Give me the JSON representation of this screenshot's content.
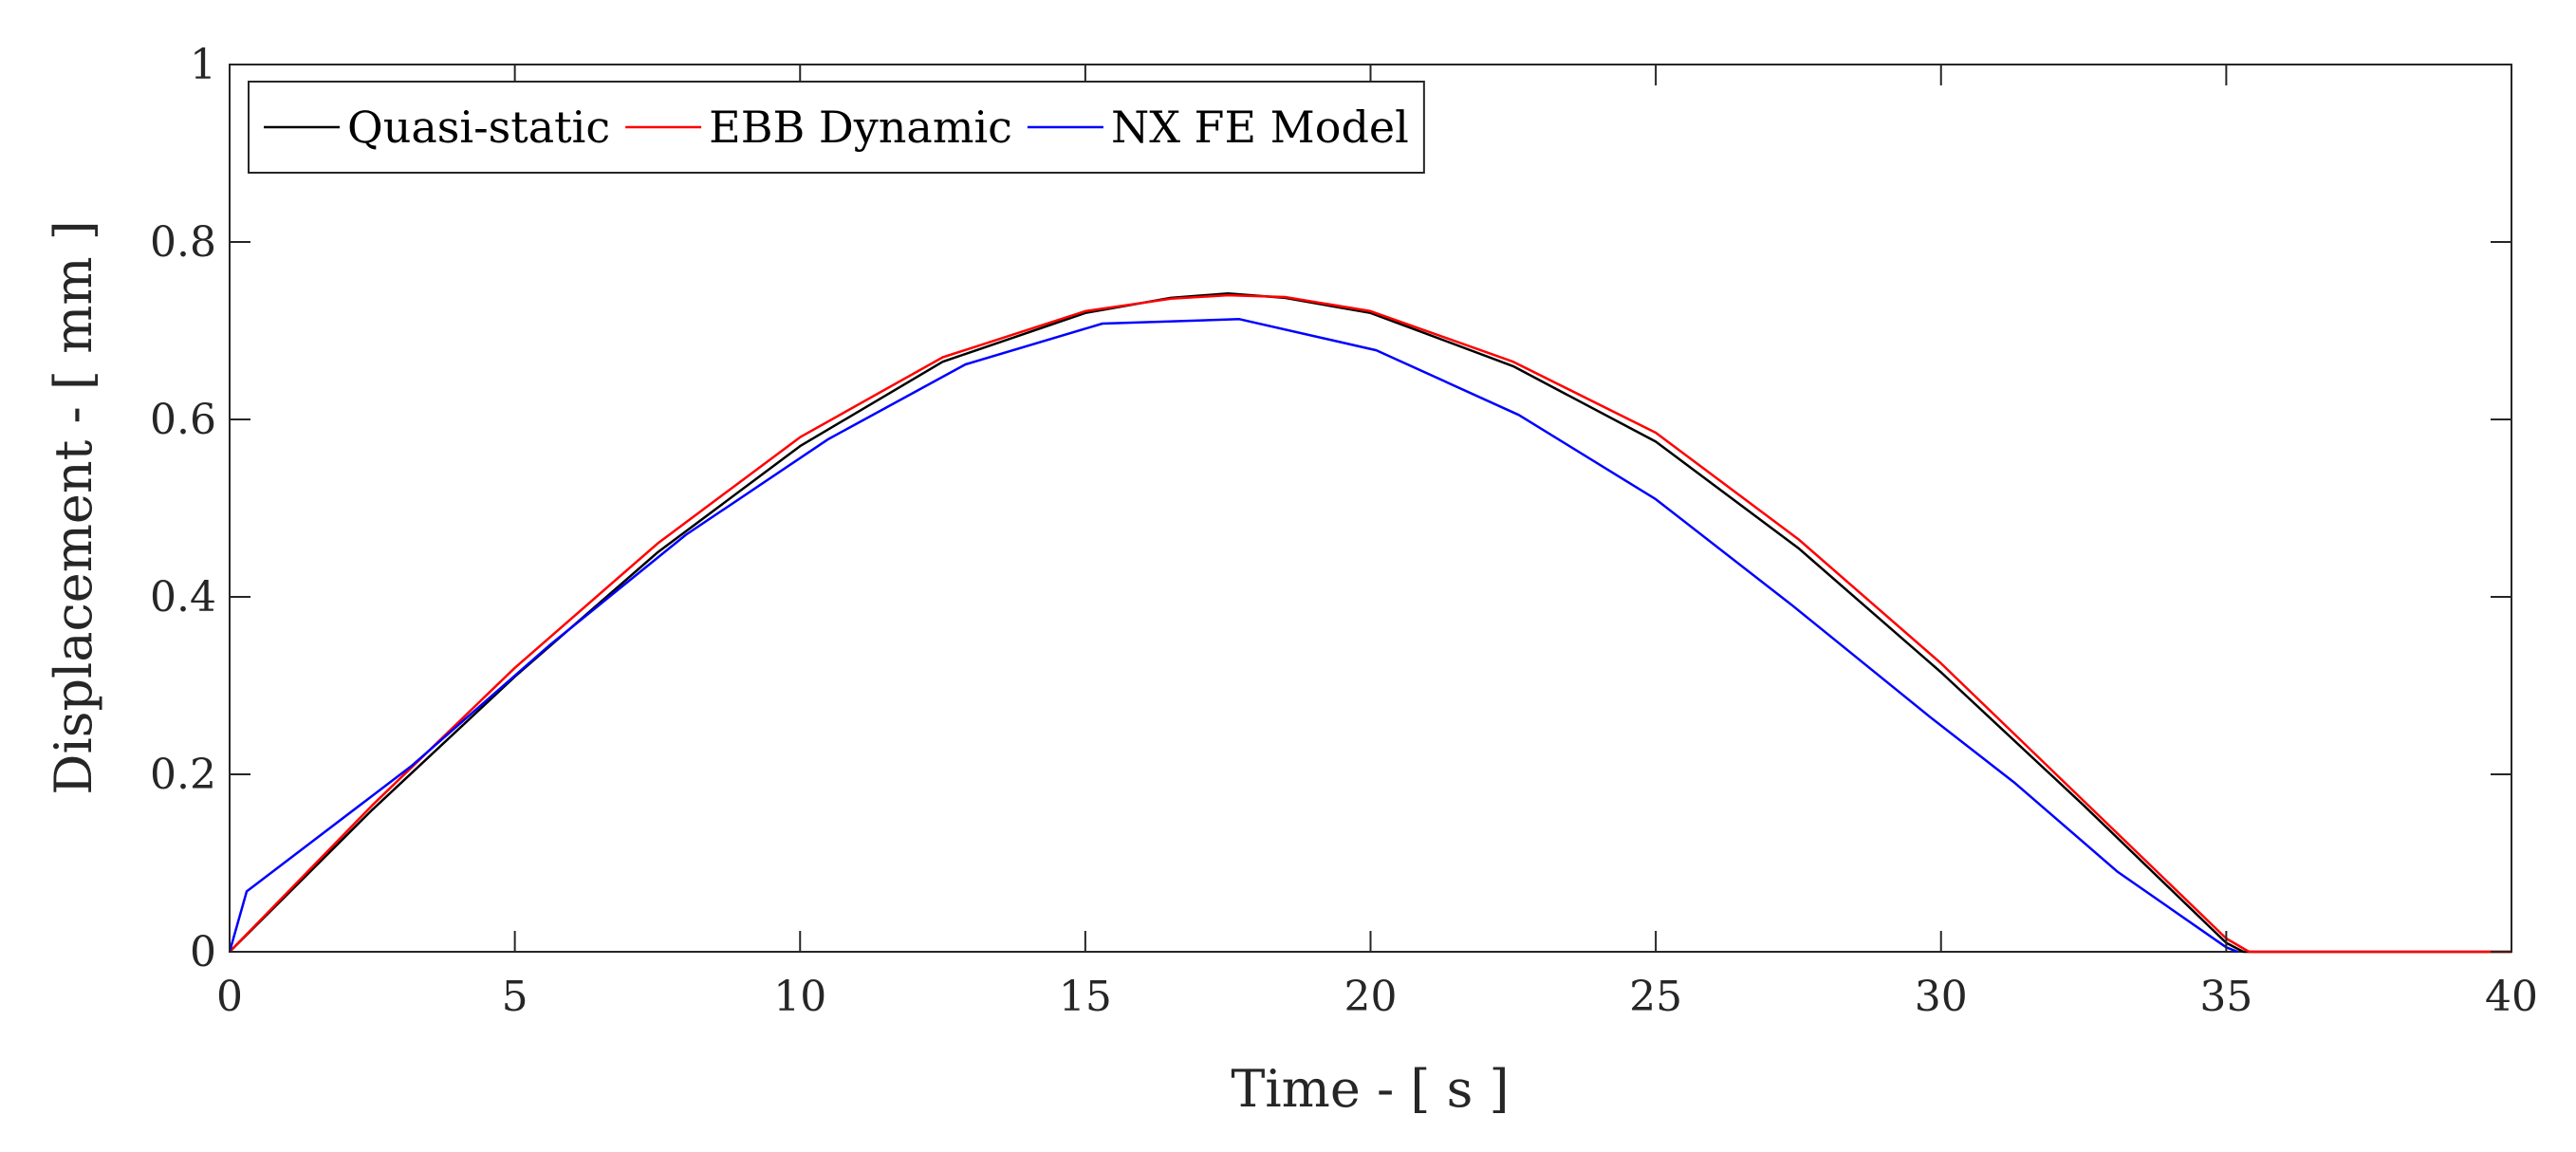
{
  "chart_data": {
    "type": "line",
    "title": "",
    "xlabel": "Time - [ s ]",
    "ylabel": "Displacement - [ mm ]",
    "xlim": [
      0,
      40
    ],
    "ylim": [
      0,
      1
    ],
    "xticks": [
      0,
      5,
      10,
      15,
      20,
      25,
      30,
      35,
      40
    ],
    "yticks": [
      0,
      0.2,
      0.4,
      0.6,
      0.8,
      1
    ],
    "xtick_labels": [
      "0",
      "5",
      "10",
      "15",
      "20",
      "25",
      "30",
      "35",
      "40"
    ],
    "ytick_labels": [
      "0",
      "0.2",
      "0.4",
      "0.6",
      "0.8",
      "1"
    ],
    "grid": false,
    "legend_position": "top-left",
    "series": [
      {
        "name": "Quasi-static",
        "color": "#000000",
        "x": [
          0,
          2.5,
          5,
          7.5,
          10,
          12.5,
          15,
          16.5,
          17.5,
          18.5,
          20,
          22.5,
          25,
          27.5,
          30,
          32.5,
          35,
          35.3,
          40
        ],
        "y": [
          0,
          0.16,
          0.31,
          0.45,
          0.57,
          0.665,
          0.72,
          0.737,
          0.742,
          0.737,
          0.72,
          0.66,
          0.575,
          0.455,
          0.315,
          0.165,
          0.01,
          0,
          0
        ]
      },
      {
        "name": "EBB Dynamic",
        "color": "#ff0000",
        "x": [
          0,
          2.5,
          5,
          7.5,
          10,
          12.5,
          15,
          16.5,
          17.5,
          18.5,
          20,
          22.5,
          25,
          27.5,
          30,
          32.5,
          35,
          35.4,
          40
        ],
        "y": [
          0,
          0.165,
          0.32,
          0.46,
          0.58,
          0.67,
          0.722,
          0.736,
          0.74,
          0.738,
          0.722,
          0.665,
          0.585,
          0.465,
          0.325,
          0.17,
          0.015,
          0,
          0
        ]
      },
      {
        "name": "NX FE Model",
        "color": "#0000ff",
        "x": [
          0,
          0.3,
          3.2,
          5.6,
          8.0,
          10.5,
          12.9,
          15.3,
          17.7,
          20.1,
          22.6,
          25.0,
          27.4,
          29.8,
          31.3,
          33.1,
          35.0,
          35.2
        ],
        "y": [
          0,
          0.068,
          0.21,
          0.345,
          0.47,
          0.578,
          0.662,
          0.708,
          0.713,
          0.678,
          0.605,
          0.51,
          0.39,
          0.265,
          0.19,
          0.09,
          0.005,
          0
        ]
      }
    ]
  }
}
